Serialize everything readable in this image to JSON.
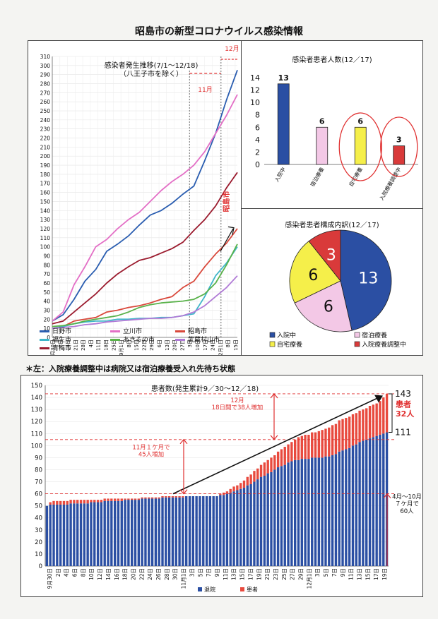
{
  "page": {
    "title": "昭島市の新型コロナウイルス感染情報",
    "note": "＊左：入院療養調整中は病院又は宿泊療養受入れ先待ち状態"
  },
  "chart_data": [
    {
      "id": "trend",
      "type": "line",
      "title": "感染者発生推移(7/1～12/18)",
      "subtitle": "（八王子市を除く）",
      "ylim": [
        0,
        310
      ],
      "yticks": [
        0,
        10,
        20,
        30,
        40,
        50,
        60,
        70,
        80,
        90,
        100,
        110,
        120,
        130,
        140,
        150,
        160,
        170,
        180,
        190,
        200,
        210,
        220,
        230,
        240,
        250,
        260,
        270,
        280,
        290,
        300,
        310
      ],
      "xlim": [
        0,
        17
      ],
      "xticks": [
        {
          "x": 0,
          "label": "6月30日"
        },
        {
          "x": 0.7,
          "label": "7日"
        },
        {
          "x": 1.4,
          "label": "14日"
        },
        {
          "x": 2.1,
          "label": "21日"
        },
        {
          "x": 2.8,
          "label": "28日"
        },
        {
          "x": 3.5,
          "label": "4日"
        },
        {
          "x": 4.2,
          "label": "11日"
        },
        {
          "x": 4.9,
          "label": "18日"
        },
        {
          "x": 5.6,
          "label": "25日"
        },
        {
          "x": 6.3,
          "label": "9月1日"
        },
        {
          "x": 7.0,
          "label": "8日"
        },
        {
          "x": 7.7,
          "label": "15日"
        },
        {
          "x": 8.4,
          "label": "22日"
        },
        {
          "x": 9.1,
          "label": "29日"
        },
        {
          "x": 9.8,
          "label": "6日"
        },
        {
          "x": 10.5,
          "label": "13日"
        },
        {
          "x": 11.2,
          "label": "20日"
        },
        {
          "x": 11.9,
          "label": "27日"
        },
        {
          "x": 12.6,
          "label": "3日"
        },
        {
          "x": 13.3,
          "label": "10日"
        },
        {
          "x": 14.0,
          "label": "17日"
        },
        {
          "x": 14.7,
          "label": "24日"
        },
        {
          "x": 15.4,
          "label": "12月1日"
        },
        {
          "x": 16.1,
          "label": "8日"
        },
        {
          "x": 16.8,
          "label": "15日"
        }
      ],
      "annotations": {
        "nov": "11月",
        "dec": "12月",
        "akishima": "昭島市"
      },
      "series": [
        {
          "name": "日野市",
          "color": "#2a5db0",
          "points": [
            [
              0,
              18
            ],
            [
              1,
              25
            ],
            [
              2,
              42
            ],
            [
              3,
              62
            ],
            [
              4,
              75
            ],
            [
              5,
              95
            ],
            [
              6,
              103
            ],
            [
              7,
              112
            ],
            [
              8,
              124
            ],
            [
              9,
              135
            ],
            [
              10,
              140
            ],
            [
              11,
              148
            ],
            [
              12,
              158
            ],
            [
              13,
              167
            ],
            [
              14,
              195
            ],
            [
              15,
              225
            ],
            [
              16,
              262
            ],
            [
              17,
              295
            ]
          ]
        },
        {
          "name": "立川市",
          "color": "#e36fc6",
          "points": [
            [
              0,
              18
            ],
            [
              1,
              28
            ],
            [
              2,
              58
            ],
            [
              3,
              78
            ],
            [
              4,
              100
            ],
            [
              5,
              108
            ],
            [
              6,
              120
            ],
            [
              7,
              130
            ],
            [
              8,
              138
            ],
            [
              9,
              150
            ],
            [
              10,
              162
            ],
            [
              11,
              172
            ],
            [
              12,
              180
            ],
            [
              13,
              190
            ],
            [
              14,
              205
            ],
            [
              15,
              225
            ],
            [
              16,
              245
            ],
            [
              17,
              268
            ]
          ]
        },
        {
          "name": "昭島市",
          "color": "#d9483b",
          "points": [
            [
              0,
              10
            ],
            [
              1,
              12
            ],
            [
              2,
              18
            ],
            [
              3,
              20
            ],
            [
              4,
              22
            ],
            [
              5,
              28
            ],
            [
              6,
              30
            ],
            [
              7,
              33
            ],
            [
              8,
              35
            ],
            [
              9,
              38
            ],
            [
              10,
              42
            ],
            [
              11,
              45
            ],
            [
              12,
              55
            ],
            [
              13,
              62
            ],
            [
              14,
              78
            ],
            [
              15,
              92
            ],
            [
              16,
              104
            ],
            [
              17,
              120
            ]
          ]
        },
        {
          "name": "福生市",
          "color": "#3fb6c9",
          "points": [
            [
              0,
              10
            ],
            [
              1,
              12
            ],
            [
              2,
              15
            ],
            [
              3,
              17
            ],
            [
              4,
              18
            ],
            [
              5,
              18
            ],
            [
              6,
              20
            ],
            [
              7,
              20
            ],
            [
              8,
              21
            ],
            [
              9,
              21
            ],
            [
              10,
              22
            ],
            [
              11,
              22
            ],
            [
              12,
              24
            ],
            [
              13,
              26
            ],
            [
              14,
              45
            ],
            [
              15,
              68
            ],
            [
              16,
              82
            ],
            [
              17,
              100
            ]
          ]
        },
        {
          "name": "あきるの市",
          "color": "#59b24a",
          "points": [
            [
              0,
              12
            ],
            [
              1,
              13
            ],
            [
              2,
              15
            ],
            [
              3,
              18
            ],
            [
              4,
              20
            ],
            [
              5,
              22
            ],
            [
              6,
              24
            ],
            [
              7,
              28
            ],
            [
              8,
              33
            ],
            [
              9,
              36
            ],
            [
              10,
              38
            ],
            [
              11,
              39
            ],
            [
              12,
              40
            ],
            [
              13,
              42
            ],
            [
              14,
              48
            ],
            [
              15,
              60
            ],
            [
              16,
              80
            ],
            [
              17,
              103
            ]
          ]
        },
        {
          "name": "武蔵村山市",
          "color": "#b07ad6",
          "points": [
            [
              0,
              10
            ],
            [
              1,
              11
            ],
            [
              2,
              12
            ],
            [
              3,
              14
            ],
            [
              4,
              15
            ],
            [
              5,
              17
            ],
            [
              6,
              18
            ],
            [
              7,
              19
            ],
            [
              8,
              20
            ],
            [
              9,
              21
            ],
            [
              10,
              21
            ],
            [
              11,
              22
            ],
            [
              12,
              24
            ],
            [
              13,
              28
            ],
            [
              14,
              35
            ],
            [
              15,
              45
            ],
            [
              16,
              55
            ],
            [
              17,
              68
            ]
          ]
        },
        {
          "name": "青梅市",
          "color": "#9b1b2e",
          "points": [
            [
              0,
              15
            ],
            [
              1,
              18
            ],
            [
              2,
              28
            ],
            [
              3,
              38
            ],
            [
              4,
              48
            ],
            [
              5,
              60
            ],
            [
              6,
              70
            ],
            [
              7,
              78
            ],
            [
              8,
              85
            ],
            [
              9,
              88
            ],
            [
              10,
              93
            ],
            [
              11,
              98
            ],
            [
              12,
              105
            ],
            [
              13,
              118
            ],
            [
              14,
              130
            ],
            [
              15,
              145
            ],
            [
              16,
              165
            ],
            [
              17,
              182
            ]
          ]
        }
      ]
    },
    {
      "id": "status-bar",
      "type": "bar",
      "title": "感染者患者人数(12／17)",
      "ylim": [
        0,
        14
      ],
      "yticks": [
        0,
        2,
        4,
        6,
        8,
        10,
        12,
        14
      ],
      "categories": [
        "入院中",
        "宿泊療養",
        "自宅療養",
        "入院療養調整中"
      ],
      "values": [
        13,
        6,
        6,
        3
      ],
      "colors": [
        "#2b4fa3",
        "#f3c8e6",
        "#f5ef4a",
        "#d93a3a"
      ]
    },
    {
      "id": "breakdown-pie",
      "type": "pie",
      "title": "感染者患者構成内訳(12／17)",
      "labels": [
        "入院中",
        "宿泊療養",
        "自宅療養",
        "入院療養調整中"
      ],
      "values": [
        13,
        6,
        6,
        3
      ],
      "colors": [
        "#2b4fa3",
        "#f3c8e6",
        "#f5ef4a",
        "#d93a3a"
      ]
    },
    {
      "id": "cumulative",
      "type": "bar",
      "title": "患者数(発生累計9／30～12／18)",
      "ylim": [
        0,
        150
      ],
      "yticks": [
        0,
        10,
        20,
        30,
        40,
        50,
        60,
        70,
        80,
        90,
        100,
        110,
        120,
        130,
        140,
        150
      ],
      "categories_labeled": [
        "9月30日",
        "2日",
        "4日",
        "6日",
        "8日",
        "10日",
        "12日",
        "14日",
        "16日",
        "18日",
        "20日",
        "22日",
        "24日",
        "26日",
        "28日",
        "30日",
        "11月1日",
        "3日",
        "5日",
        "7日",
        "9日",
        "11日",
        "13日",
        "15日",
        "17日",
        "19日",
        "21日",
        "23日",
        "25日",
        "27日",
        "29日",
        "12月1日",
        "3日",
        "5日",
        "7日",
        "9日",
        "11日",
        "13日",
        "15日",
        "17日",
        "19日"
      ],
      "series": [
        {
          "name": "退院",
          "color": "#2b4fa3",
          "values": [
            50,
            51,
            51,
            51,
            51,
            51,
            51,
            52,
            52,
            52,
            52,
            52,
            52,
            53,
            53,
            53,
            53,
            54,
            54,
            54,
            54,
            54,
            54,
            55,
            55,
            55,
            55,
            55,
            56,
            56,
            56,
            56,
            56,
            56,
            57,
            57,
            57,
            57,
            57,
            57,
            57,
            58,
            58,
            58,
            58,
            58,
            58,
            58,
            58,
            58,
            58,
            59,
            59,
            60,
            61,
            62,
            63,
            64,
            65,
            67,
            68,
            70,
            72,
            74,
            75,
            77,
            78,
            80,
            82,
            83,
            84,
            86,
            87,
            88,
            88,
            89,
            89,
            89,
            90,
            90,
            90,
            90,
            91,
            91,
            92,
            93,
            95,
            96,
            97,
            98,
            100,
            101,
            103,
            104,
            105,
            106,
            107,
            108,
            109,
            110,
            111
          ]
        },
        {
          "name": "患者",
          "color": "#e84a3e",
          "values": [
            0,
            2,
            3,
            3,
            3,
            3,
            3,
            3,
            3,
            3,
            3,
            3,
            3,
            2,
            2,
            2,
            2,
            2,
            2,
            2,
            2,
            2,
            2,
            1,
            1,
            1,
            1,
            1,
            1,
            1,
            1,
            1,
            1,
            1,
            1,
            1,
            1,
            1,
            1,
            1,
            1,
            0,
            0,
            0,
            0,
            0,
            0,
            0,
            0,
            0,
            0,
            1,
            2,
            2,
            3,
            4,
            4,
            5,
            6,
            7,
            8,
            9,
            9,
            10,
            11,
            11,
            12,
            12,
            13,
            14,
            15,
            15,
            16,
            17,
            19,
            19,
            20,
            20,
            21,
            21,
            22,
            23,
            23,
            24,
            25,
            25,
            26,
            26,
            26,
            26,
            26,
            26,
            26,
            26,
            26,
            27,
            27,
            27,
            28,
            30,
            32
          ]
        }
      ],
      "annotations": {
        "total": "143",
        "discharged": "111",
        "patients": "患者\n32人",
        "dec_note": "12月\n18日間で38人増加",
        "nov_note": "11月１ケ月で\n45人増加",
        "aprOct_note": "4月～10月\n７ケ月で\n60人"
      }
    }
  ]
}
